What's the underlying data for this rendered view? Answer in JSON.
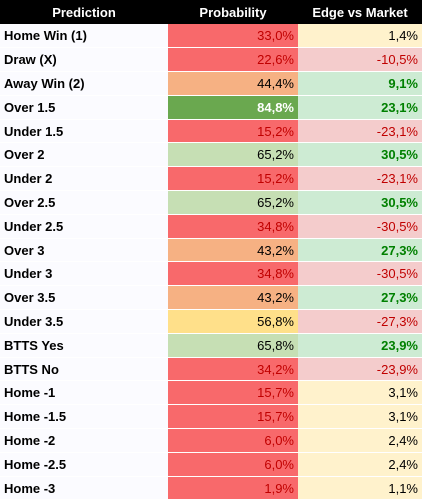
{
  "table": {
    "header": [
      "Prediction",
      "Probability",
      "Edge vs Market"
    ],
    "rows": [
      {
        "cells": [
          "Home Win (1)",
          "33,0%",
          "1,4%"
        ],
        "prob_bg": "#f8696b",
        "prob_fg": "#c00000",
        "edge_bg": "#fff2cc",
        "edge_fg": "#000000",
        "edge_bold": false
      },
      {
        "cells": [
          "Draw (X)",
          "22,6%",
          "-10,5%"
        ],
        "prob_bg": "#f8696b",
        "prob_fg": "#c00000",
        "edge_bg": "#f4cccc",
        "edge_fg": "#c00000",
        "edge_bold": false
      },
      {
        "cells": [
          "Away Win (2)",
          "44,4%",
          "9,1%"
        ],
        "prob_bg": "#f6b183",
        "prob_fg": "#000000",
        "edge_bg": "#cdebd3",
        "edge_fg": "#008000",
        "edge_bold": true
      },
      {
        "cells": [
          "Over 1.5",
          "84,8%",
          "23,1%"
        ],
        "prob_bg": "#6aa84f",
        "prob_fg": "#ffffff",
        "edge_bg": "#cdebd3",
        "edge_fg": "#008000",
        "edge_bold": true
      },
      {
        "cells": [
          "Under 1.5",
          "15,2%",
          "-23,1%"
        ],
        "prob_bg": "#f8696b",
        "prob_fg": "#c00000",
        "edge_bg": "#f4cccc",
        "edge_fg": "#c00000",
        "edge_bold": false
      },
      {
        "cells": [
          "Over 2",
          "65,2%",
          "30,5%"
        ],
        "prob_bg": "#c6dfb4",
        "prob_fg": "#000000",
        "edge_bg": "#cdebd3",
        "edge_fg": "#008000",
        "edge_bold": true
      },
      {
        "cells": [
          "Under 2",
          "15,2%",
          "-23,1%"
        ],
        "prob_bg": "#f8696b",
        "prob_fg": "#c00000",
        "edge_bg": "#f4cccc",
        "edge_fg": "#c00000",
        "edge_bold": false
      },
      {
        "cells": [
          "Over 2.5",
          "65,2%",
          "30,5%"
        ],
        "prob_bg": "#c6dfb4",
        "prob_fg": "#000000",
        "edge_bg": "#cdebd3",
        "edge_fg": "#008000",
        "edge_bold": true
      },
      {
        "cells": [
          "Under 2.5",
          "34,8%",
          "-30,5%"
        ],
        "prob_bg": "#f8696b",
        "prob_fg": "#c00000",
        "edge_bg": "#f4cccc",
        "edge_fg": "#c00000",
        "edge_bold": false
      },
      {
        "cells": [
          "Over 3",
          "43,2%",
          "27,3%"
        ],
        "prob_bg": "#f6b183",
        "prob_fg": "#000000",
        "edge_bg": "#cdebd3",
        "edge_fg": "#008000",
        "edge_bold": true
      },
      {
        "cells": [
          "Under 3",
          "34,8%",
          "-30,5%"
        ],
        "prob_bg": "#f8696b",
        "prob_fg": "#c00000",
        "edge_bg": "#f4cccc",
        "edge_fg": "#c00000",
        "edge_bold": false
      },
      {
        "cells": [
          "Over 3.5",
          "43,2%",
          "27,3%"
        ],
        "prob_bg": "#f6b183",
        "prob_fg": "#000000",
        "edge_bg": "#cdebd3",
        "edge_fg": "#008000",
        "edge_bold": true
      },
      {
        "cells": [
          "Under 3.5",
          "56,8%",
          "-27,3%"
        ],
        "prob_bg": "#ffe08a",
        "prob_fg": "#000000",
        "edge_bg": "#f4cccc",
        "edge_fg": "#c00000",
        "edge_bold": false
      },
      {
        "cells": [
          "BTTS Yes",
          "65,8%",
          "23,9%"
        ],
        "prob_bg": "#c6dfb4",
        "prob_fg": "#000000",
        "edge_bg": "#cdebd3",
        "edge_fg": "#008000",
        "edge_bold": true
      },
      {
        "cells": [
          "BTTS No",
          "34,2%",
          "-23,9%"
        ],
        "prob_bg": "#f8696b",
        "prob_fg": "#c00000",
        "edge_bg": "#f4cccc",
        "edge_fg": "#c00000",
        "edge_bold": false
      },
      {
        "cells": [
          "Home -1",
          "15,7%",
          "3,1%"
        ],
        "prob_bg": "#f8696b",
        "prob_fg": "#c00000",
        "edge_bg": "#fff2cc",
        "edge_fg": "#000000",
        "edge_bold": false
      },
      {
        "cells": [
          "Home -1.5",
          "15,7%",
          "3,1%"
        ],
        "prob_bg": "#f8696b",
        "prob_fg": "#c00000",
        "edge_bg": "#fff2cc",
        "edge_fg": "#000000",
        "edge_bold": false
      },
      {
        "cells": [
          "Home -2",
          "6,0%",
          "2,4%"
        ],
        "prob_bg": "#f8696b",
        "prob_fg": "#c00000",
        "edge_bg": "#fff2cc",
        "edge_fg": "#000000",
        "edge_bold": false
      },
      {
        "cells": [
          "Home -2.5",
          "6,0%",
          "2,4%"
        ],
        "prob_bg": "#f8696b",
        "prob_fg": "#c00000",
        "edge_bg": "#fff2cc",
        "edge_fg": "#000000",
        "edge_bold": false
      },
      {
        "cells": [
          "Home -3",
          "1,9%",
          "1,1%"
        ],
        "prob_bg": "#f8696b",
        "prob_fg": "#c00000",
        "edge_bg": "#fff2cc",
        "edge_fg": "#000000",
        "edge_bold": false
      }
    ]
  }
}
